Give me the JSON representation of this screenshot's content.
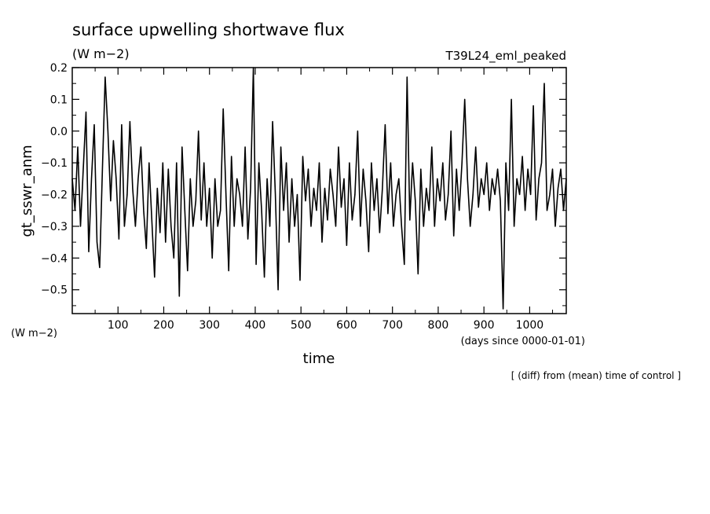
{
  "chart_data": {
    "type": "line",
    "title": "surface upwelling shortwave flux",
    "units_label": "(W m−2)",
    "run_label": "T39L24_eml_peaked",
    "ylabel": "gt_sswr_anm",
    "y_unit_label": "(W m−2)",
    "xlabel": "time",
    "x_unit_label": "(days since 0000-01-01)",
    "note": "[ (diff) from (mean) time of control ]",
    "xlim": [
      0,
      1080
    ],
    "ylim": [
      -0.575,
      0.2
    ],
    "x_ticks": [
      100,
      200,
      300,
      400,
      500,
      600,
      700,
      800,
      900,
      1000
    ],
    "y_ticks": [
      0.2,
      0.1,
      0.0,
      -0.1,
      -0.2,
      -0.3,
      -0.4,
      -0.5
    ],
    "y_tick_labels": [
      "0.2",
      "0.1",
      "0.0",
      "−0.1",
      "−0.2",
      "−0.3",
      "−0.4",
      "−0.5"
    ],
    "series": [
      {
        "x": [
          0,
          6,
          12,
          18,
          24,
          30,
          36,
          42,
          48,
          54,
          60,
          66,
          72,
          78,
          84,
          90,
          96,
          102,
          108,
          114,
          120,
          126,
          132,
          138,
          144,
          150,
          156,
          162,
          168,
          174,
          180,
          186,
          192,
          198,
          204,
          210,
          216,
          222,
          228,
          234,
          240,
          246,
          252,
          258,
          264,
          270,
          276,
          282,
          288,
          294,
          300,
          306,
          312,
          318,
          324,
          330,
          336,
          342,
          348,
          354,
          360,
          366,
          372,
          378,
          384,
          390,
          396,
          402,
          408,
          414,
          420,
          426,
          432,
          438,
          444,
          450,
          456,
          462,
          468,
          474,
          480,
          486,
          492,
          498,
          504,
          510,
          516,
          522,
          528,
          534,
          540,
          546,
          552,
          558,
          564,
          570,
          576,
          582,
          588,
          594,
          600,
          606,
          612,
          618,
          624,
          630,
          636,
          642,
          648,
          654,
          660,
          666,
          672,
          678,
          684,
          690,
          696,
          702,
          708,
          714,
          720,
          726,
          732,
          738,
          744,
          750,
          756,
          762,
          768,
          774,
          780,
          786,
          792,
          798,
          804,
          810,
          816,
          822,
          828,
          834,
          840,
          846,
          852,
          858,
          864,
          870,
          876,
          882,
          888,
          894,
          900,
          906,
          912,
          918,
          924,
          930,
          936,
          942,
          948,
          954,
          960,
          966,
          972,
          978,
          984,
          990,
          996,
          1002,
          1008,
          1014,
          1020,
          1026,
          1032,
          1038,
          1044,
          1050,
          1056,
          1062,
          1068,
          1074,
          1080
        ],
        "y": [
          -0.15,
          -0.25,
          -0.05,
          -0.3,
          -0.12,
          0.06,
          -0.38,
          -0.15,
          0.02,
          -0.35,
          -0.43,
          -0.12,
          0.17,
          0.0,
          -0.22,
          -0.03,
          -0.15,
          -0.34,
          0.02,
          -0.3,
          -0.2,
          0.03,
          -0.18,
          -0.3,
          -0.15,
          -0.05,
          -0.25,
          -0.37,
          -0.1,
          -0.28,
          -0.46,
          -0.18,
          -0.32,
          -0.1,
          -0.35,
          -0.12,
          -0.3,
          -0.4,
          -0.1,
          -0.52,
          -0.05,
          -0.25,
          -0.44,
          -0.15,
          -0.3,
          -0.22,
          0.0,
          -0.28,
          -0.1,
          -0.3,
          -0.18,
          -0.4,
          -0.15,
          -0.3,
          -0.25,
          0.07,
          -0.2,
          -0.44,
          -0.08,
          -0.3,
          -0.15,
          -0.2,
          -0.3,
          -0.05,
          -0.34,
          -0.18,
          0.2,
          -0.42,
          -0.1,
          -0.25,
          -0.46,
          -0.15,
          -0.3,
          0.03,
          -0.2,
          -0.5,
          -0.05,
          -0.25,
          -0.1,
          -0.35,
          -0.15,
          -0.3,
          -0.2,
          -0.47,
          -0.08,
          -0.22,
          -0.12,
          -0.3,
          -0.18,
          -0.25,
          -0.1,
          -0.35,
          -0.18,
          -0.28,
          -0.12,
          -0.2,
          -0.3,
          -0.05,
          -0.24,
          -0.15,
          -0.36,
          -0.1,
          -0.28,
          -0.2,
          0.0,
          -0.3,
          -0.12,
          -0.22,
          -0.38,
          -0.1,
          -0.25,
          -0.15,
          -0.32,
          -0.18,
          0.02,
          -0.26,
          -0.1,
          -0.3,
          -0.2,
          -0.15,
          -0.3,
          -0.42,
          0.17,
          -0.28,
          -0.1,
          -0.22,
          -0.45,
          -0.12,
          -0.3,
          -0.18,
          -0.25,
          -0.05,
          -0.3,
          -0.15,
          -0.22,
          -0.1,
          -0.28,
          -0.2,
          0.0,
          -0.33,
          -0.12,
          -0.25,
          -0.1,
          0.1,
          -0.15,
          -0.3,
          -0.2,
          -0.05,
          -0.24,
          -0.15,
          -0.2,
          -0.1,
          -0.25,
          -0.15,
          -0.2,
          -0.12,
          -0.22,
          -0.56,
          -0.1,
          -0.25,
          0.1,
          -0.3,
          -0.15,
          -0.2,
          -0.08,
          -0.25,
          -0.12,
          -0.2,
          0.08,
          -0.28,
          -0.15,
          -0.1,
          0.15,
          -0.25,
          -0.2,
          -0.12,
          -0.3,
          -0.18,
          -0.12,
          -0.25,
          -0.15
        ]
      }
    ],
    "grid": false,
    "legend": "none"
  }
}
